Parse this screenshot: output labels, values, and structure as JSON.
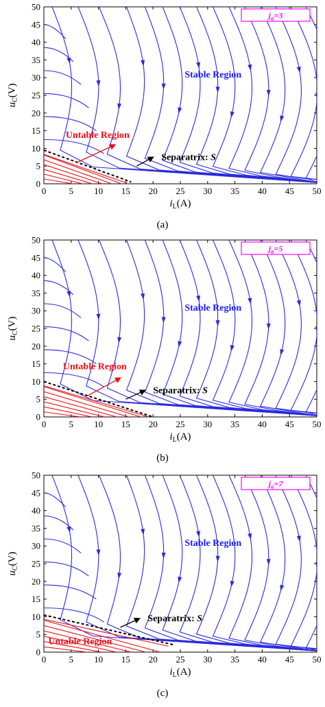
{
  "colors": {
    "stable": "#2a2adf",
    "unstable": "#e8101a",
    "legend": "#ff00ff",
    "separatrix": "#000000"
  },
  "chart_data": [
    {
      "type": "line",
      "caption": "(a)",
      "legend_label": "j",
      "legend_subscript": "a",
      "legend_value": "=3",
      "xlabel_main": "i",
      "xlabel_sub": "L",
      "xlabel_unit": "(A)",
      "ylabel_main": "u",
      "ylabel_sub": "C",
      "ylabel_unit": "(V)",
      "xlim": [
        0,
        50
      ],
      "ylim": [
        0,
        50
      ],
      "xticks": [
        0,
        5,
        10,
        15,
        20,
        25,
        30,
        35,
        40,
        45,
        50
      ],
      "yticks": [
        0,
        5,
        10,
        15,
        20,
        25,
        30,
        35,
        40,
        45,
        50
      ],
      "stable_label": "Stable Region",
      "unstable_label": "Untable Region",
      "separatrix_label": "Separatrix: ",
      "separatrix_symbol": "S",
      "separatrix": [
        [
          0,
          9.5
        ],
        [
          16,
          0.5
        ]
      ],
      "unstable_arrow": [
        [
          6,
          6
        ],
        [
          13,
          11
        ]
      ],
      "sep_arrow": [
        [
          17,
          5
        ],
        [
          20,
          7.5
        ]
      ]
    },
    {
      "type": "line",
      "caption": "(b)",
      "legend_label": "j",
      "legend_subscript": "a",
      "legend_value": "=5",
      "xlabel_main": "i",
      "xlabel_sub": "L",
      "xlabel_unit": "(A)",
      "ylabel_main": "u",
      "ylabel_sub": "C",
      "ylabel_unit": "(V)",
      "xlim": [
        0,
        50
      ],
      "ylim": [
        0,
        50
      ],
      "xticks": [
        0,
        5,
        10,
        15,
        20,
        25,
        30,
        35,
        40,
        45,
        50
      ],
      "yticks": [
        0,
        5,
        10,
        15,
        20,
        25,
        30,
        35,
        40,
        45,
        50
      ],
      "stable_label": "Stable Region",
      "unstable_label": "Untable Region",
      "separatrix_label": "Separatrix: ",
      "separatrix_symbol": "S",
      "separatrix": [
        [
          0,
          10
        ],
        [
          20,
          0
        ]
      ],
      "unstable_arrow": [
        [
          8,
          6
        ],
        [
          14,
          11
        ]
      ],
      "sep_arrow": [
        [
          15,
          5
        ],
        [
          18.5,
          7.5
        ]
      ]
    },
    {
      "type": "line",
      "caption": "(c)",
      "legend_label": "j",
      "legend_subscript": "a",
      "legend_value": "=7",
      "xlabel_main": "i",
      "xlabel_sub": "L",
      "xlabel_unit": "(A)",
      "ylabel_main": "u",
      "ylabel_sub": "C",
      "ylabel_unit": "(V)",
      "xlim": [
        0,
        50
      ],
      "ylim": [
        0,
        50
      ],
      "xticks": [
        0,
        5,
        10,
        15,
        20,
        25,
        30,
        35,
        40,
        45,
        50
      ],
      "yticks": [
        0,
        5,
        10,
        15,
        20,
        25,
        30,
        35,
        40,
        45,
        50
      ],
      "stable_label": "Stable Region",
      "unstable_label": "Untable Region",
      "separatrix_label": "Separatrix: ",
      "separatrix_symbol": "S",
      "separatrix": [
        [
          0,
          10.5
        ],
        [
          24,
          2
        ]
      ],
      "unstable_arrow": null,
      "sep_arrow": [
        [
          14,
          7
        ],
        [
          17.5,
          9.5
        ]
      ]
    }
  ]
}
